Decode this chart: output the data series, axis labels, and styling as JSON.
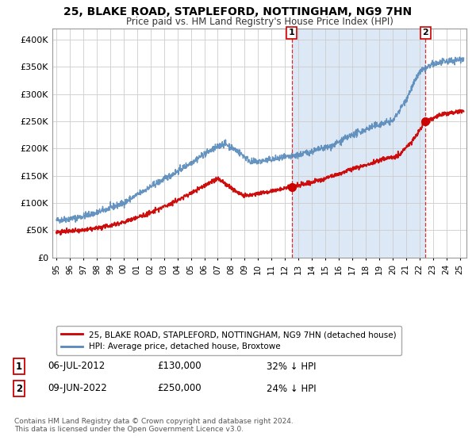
{
  "title": "25, BLAKE ROAD, STAPLEFORD, NOTTINGHAM, NG9 7HN",
  "subtitle": "Price paid vs. HM Land Registry's House Price Index (HPI)",
  "legend_label_red": "25, BLAKE ROAD, STAPLEFORD, NOTTINGHAM, NG9 7HN (detached house)",
  "legend_label_blue": "HPI: Average price, detached house, Broxtowe",
  "annotation1_date": "06-JUL-2012",
  "annotation1_price": "£130,000",
  "annotation1_hpi": "32% ↓ HPI",
  "annotation1_year": 2012.5,
  "annotation1_value": 130000,
  "annotation2_date": "09-JUN-2022",
  "annotation2_price": "£250,000",
  "annotation2_hpi": "24% ↓ HPI",
  "annotation2_year": 2022.45,
  "annotation2_value": 250000,
  "background_color": "#dce8f5",
  "plot_bg_color": "#dce8f5",
  "shade_color": "#dce8f5",
  "red_color": "#cc0000",
  "blue_color": "#5588bb",
  "ylim": [
    0,
    420000
  ],
  "yticks": [
    0,
    50000,
    100000,
    150000,
    200000,
    250000,
    300000,
    350000,
    400000
  ],
  "xmin": 1994.7,
  "xmax": 2025.5,
  "footer": "Contains HM Land Registry data © Crown copyright and database right 2024.\nThis data is licensed under the Open Government Licence v3.0."
}
